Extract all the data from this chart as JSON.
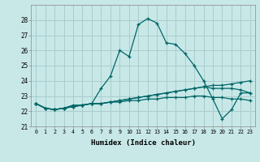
{
  "title": "",
  "xlabel": "Humidex (Indice chaleur)",
  "ylabel": "",
  "background_color": "#c8e8e8",
  "grid_color": "#aacccc",
  "line_color": "#006666",
  "xlim": [
    -0.5,
    23.5
  ],
  "ylim": [
    21,
    29
  ],
  "yticks": [
    21,
    22,
    23,
    24,
    25,
    26,
    27,
    28
  ],
  "xticks": [
    0,
    1,
    2,
    3,
    4,
    5,
    6,
    7,
    8,
    9,
    10,
    11,
    12,
    13,
    14,
    15,
    16,
    17,
    18,
    19,
    20,
    21,
    22,
    23
  ],
  "series": [
    [
      22.5,
      22.2,
      22.1,
      22.2,
      22.4,
      22.4,
      22.5,
      23.5,
      24.3,
      26.0,
      25.6,
      27.7,
      28.1,
      27.8,
      26.5,
      26.4,
      25.8,
      25.0,
      24.0,
      22.8,
      21.5,
      22.1,
      23.2,
      23.2
    ],
    [
      22.5,
      22.2,
      22.1,
      22.2,
      22.3,
      22.4,
      22.5,
      22.5,
      22.6,
      22.7,
      22.8,
      22.9,
      23.0,
      23.1,
      23.2,
      23.3,
      23.4,
      23.5,
      23.6,
      23.7,
      23.7,
      23.8,
      23.9,
      24.0
    ],
    [
      22.5,
      22.2,
      22.1,
      22.2,
      22.3,
      22.4,
      22.5,
      22.5,
      22.6,
      22.7,
      22.8,
      22.9,
      23.0,
      23.1,
      23.2,
      23.3,
      23.4,
      23.5,
      23.6,
      23.5,
      23.5,
      23.5,
      23.4,
      23.2
    ],
    [
      22.5,
      22.2,
      22.1,
      22.2,
      22.3,
      22.4,
      22.5,
      22.5,
      22.6,
      22.6,
      22.7,
      22.7,
      22.8,
      22.8,
      22.9,
      22.9,
      22.9,
      23.0,
      23.0,
      22.9,
      22.9,
      22.8,
      22.8,
      22.7
    ]
  ]
}
